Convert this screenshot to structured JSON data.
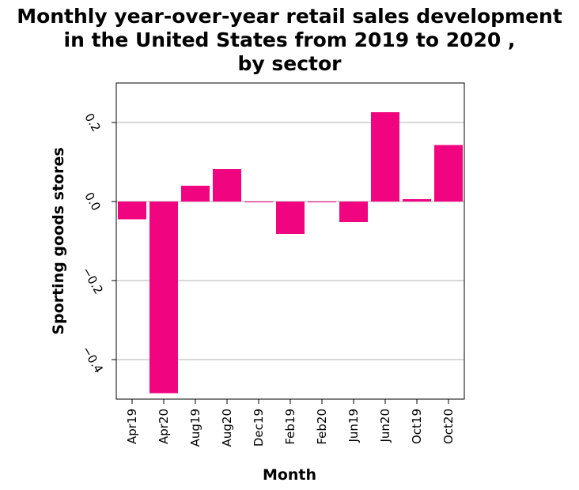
{
  "chart_data": {
    "type": "bar",
    "title": "Monthly year-over-year retail sales development in the United States from 2019 to 2020 , by sector",
    "title_lines": [
      "Monthly year-over-year retail sales development",
      "in the United States from 2019 to 2020 ,",
      "by sector"
    ],
    "xlabel": "Month",
    "ylabel": "Sporting goods stores",
    "categories": [
      "Apr19",
      "Apr20",
      "Aug19",
      "Aug20",
      "Dec19",
      "Feb19",
      "Feb20",
      "Jun19",
      "Jun20",
      "Oct19",
      "Oct20"
    ],
    "values": [
      -0.045,
      -0.485,
      0.04,
      0.082,
      -0.002,
      -0.082,
      -0.001,
      -0.052,
      0.226,
      0.006,
      0.143
    ],
    "ylim": [
      -0.5,
      0.3
    ],
    "yticks": [
      0.2,
      0.0,
      -0.2,
      -0.4
    ],
    "ytick_labels": [
      "0.2",
      "0.0",
      "−0.2",
      "−0.4"
    ],
    "bar_color": "#f0047f",
    "grid": true
  }
}
